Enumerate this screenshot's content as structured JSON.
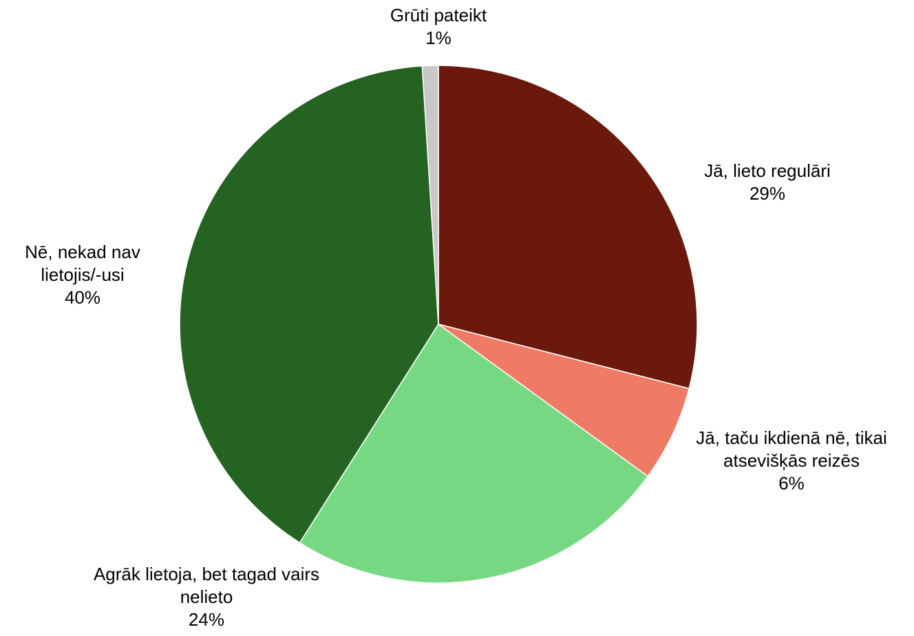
{
  "chart_data": {
    "type": "pie",
    "categories": [
      "Jā, lieto regulāri",
      "Jā, taču ikdienā nē, tikai atsevišķās reizēs",
      "Agrāk lietoja, bet tagad vairs nelieto",
      "Nē, nekad nav lietojis/-usi",
      "Grūti pateikt"
    ],
    "values": [
      29,
      6,
      24,
      40,
      1
    ],
    "value_labels": [
      "29%",
      "6%",
      "24%",
      "40%",
      "1%"
    ],
    "colors": [
      "#6a190c",
      "#ef7b67",
      "#76d882",
      "#256323",
      "#c8c8c8"
    ]
  }
}
